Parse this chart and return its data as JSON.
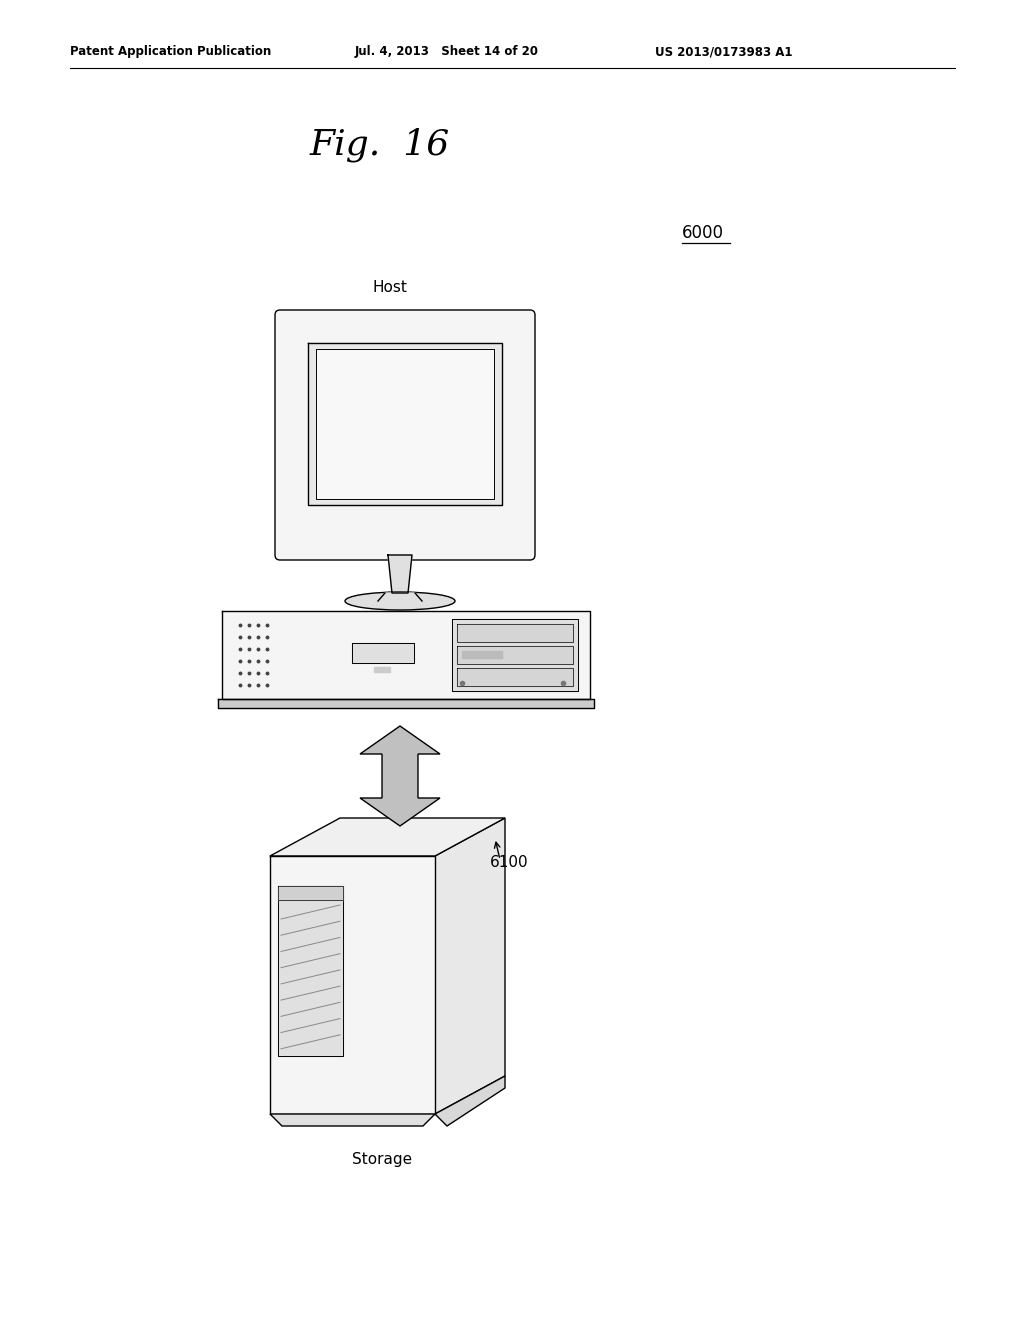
{
  "bg_color": "#ffffff",
  "header_left": "Patent Application Publication",
  "header_mid": "Jul. 4, 2013   Sheet 14 of 20",
  "header_right": "US 2013/0173983 A1",
  "fig_title": "Fig.  16",
  "label_host": "Host",
  "label_6000": "6000",
  "label_6100": "6100",
  "label_storage": "Storage",
  "line_color": "#000000",
  "fill_light": "#f5f5f5",
  "fill_mid": "#e0e0e0",
  "fill_dark": "#cccccc",
  "fill_screen": "#ffffff",
  "arrow_fill": "#c0c0c0"
}
